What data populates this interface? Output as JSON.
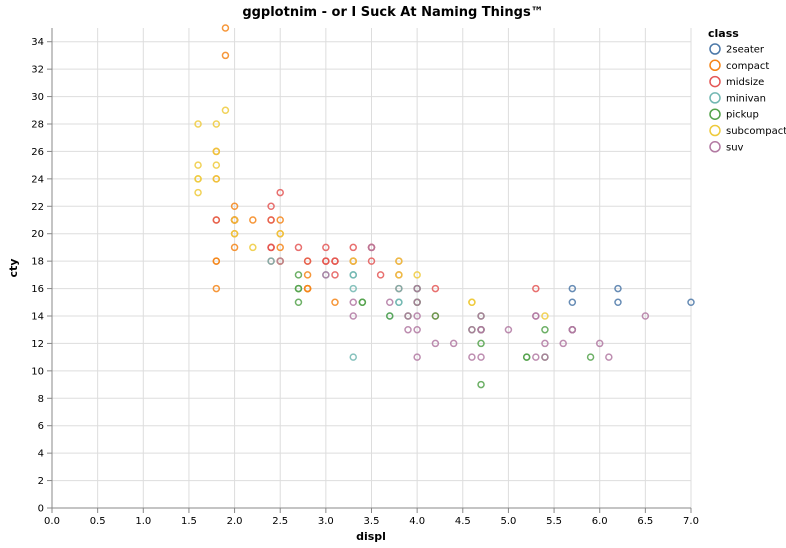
{
  "chart_data": {
    "type": "scatter",
    "title": "ggplotnim - or I Suck At Naming Things™",
    "xlabel": "displ",
    "ylabel": "cty",
    "xlim": [
      0,
      7.0
    ],
    "ylim": [
      0,
      35
    ],
    "x_ticks": [
      "0.0",
      "0.5",
      "1.0",
      "1.5",
      "2.0",
      "2.5",
      "3.0",
      "3.5",
      "4.0",
      "4.5",
      "5.0",
      "5.5",
      "6.0",
      "6.5",
      "7.0"
    ],
    "y_ticks": [
      "0",
      "2",
      "4",
      "6",
      "8",
      "10",
      "12",
      "14",
      "16",
      "18",
      "20",
      "22",
      "24",
      "26",
      "28",
      "30",
      "32",
      "34"
    ],
    "grid": true,
    "legend": {
      "title": "class",
      "placement": "right"
    },
    "series": [
      {
        "name": "2seater",
        "color": "#4c78a8",
        "points": [
          [
            5.7,
            16
          ],
          [
            5.7,
            15
          ],
          [
            6.2,
            16
          ],
          [
            6.2,
            15
          ],
          [
            7.0,
            15
          ]
        ]
      },
      {
        "name": "compact",
        "color": "#f58518",
        "points": [
          [
            1.8,
            18
          ],
          [
            1.8,
            21
          ],
          [
            2.0,
            20
          ],
          [
            2.0,
            21
          ],
          [
            2.8,
            16
          ],
          [
            2.8,
            18
          ],
          [
            3.1,
            18
          ],
          [
            1.8,
            18
          ],
          [
            2.0,
            21
          ],
          [
            2.0,
            21
          ],
          [
            2.8,
            16
          ],
          [
            2.8,
            16
          ],
          [
            3.1,
            15
          ],
          [
            1.8,
            26
          ],
          [
            2.0,
            21
          ],
          [
            2.2,
            21
          ],
          [
            2.4,
            21
          ],
          [
            2.4,
            19
          ],
          [
            2.5,
            19
          ],
          [
            2.5,
            20
          ],
          [
            3.0,
            18
          ],
          [
            3.3,
            18
          ],
          [
            1.8,
            16
          ],
          [
            1.9,
            33
          ],
          [
            2.0,
            22
          ],
          [
            2.0,
            19
          ],
          [
            2.8,
            17
          ],
          [
            1.8,
            24
          ],
          [
            1.9,
            35
          ],
          [
            2.0,
            21
          ],
          [
            2.5,
            21
          ],
          [
            2.5,
            18
          ]
        ]
      },
      {
        "name": "midsize",
        "color": "#e45756",
        "points": [
          [
            2.4,
            21
          ],
          [
            2.4,
            18
          ],
          [
            3.1,
            18
          ],
          [
            3.5,
            19
          ],
          [
            3.6,
            17
          ],
          [
            2.4,
            19
          ],
          [
            3.0,
            18
          ],
          [
            3.3,
            19
          ],
          [
            3.3,
            18
          ],
          [
            3.8,
            18
          ],
          [
            3.8,
            16
          ],
          [
            3.8,
            17
          ],
          [
            4.2,
            16
          ],
          [
            5.3,
            16
          ],
          [
            2.5,
            23
          ],
          [
            2.7,
            19
          ],
          [
            3.0,
            18
          ],
          [
            3.5,
            19
          ],
          [
            1.8,
            21
          ],
          [
            2.0,
            21
          ],
          [
            2.8,
            18
          ],
          [
            3.1,
            17
          ],
          [
            4.2,
            14
          ],
          [
            2.4,
            22
          ],
          [
            3.5,
            18
          ],
          [
            3.0,
            19
          ],
          [
            2.5,
            18
          ],
          [
            2.4,
            19
          ],
          [
            3.1,
            18
          ]
        ]
      },
      {
        "name": "minivan",
        "color": "#72b7b2",
        "points": [
          [
            2.4,
            18
          ],
          [
            3.0,
            17
          ],
          [
            3.3,
            16
          ],
          [
            3.3,
            17
          ],
          [
            3.3,
            11
          ],
          [
            3.8,
            15
          ],
          [
            3.8,
            15
          ],
          [
            3.8,
            16
          ],
          [
            4.0,
            16
          ],
          [
            3.3,
            17
          ],
          [
            3.7,
            14
          ]
        ]
      },
      {
        "name": "pickup",
        "color": "#54a24b",
        "points": [
          [
            2.7,
            15
          ],
          [
            2.7,
            16
          ],
          [
            2.7,
            17
          ],
          [
            3.4,
            15
          ],
          [
            3.9,
            14
          ],
          [
            4.7,
            14
          ],
          [
            4.7,
            13
          ],
          [
            4.7,
            12
          ],
          [
            5.2,
            11
          ],
          [
            5.7,
            13
          ],
          [
            5.9,
            11
          ],
          [
            4.7,
            9
          ],
          [
            5.2,
            11
          ],
          [
            3.7,
            14
          ],
          [
            4.0,
            15
          ],
          [
            4.2,
            14
          ],
          [
            4.6,
            13
          ],
          [
            5.4,
            11
          ],
          [
            5.4,
            13
          ],
          [
            4.0,
            16
          ],
          [
            4.7,
            13
          ],
          [
            2.7,
            16
          ],
          [
            3.4,
            15
          ],
          [
            4.0,
            15
          ]
        ]
      },
      {
        "name": "subcompact",
        "color": "#eeca3b",
        "points": [
          [
            1.6,
            28
          ],
          [
            1.6,
            24
          ],
          [
            1.6,
            25
          ],
          [
            1.6,
            23
          ],
          [
            1.6,
            24
          ],
          [
            1.8,
            26
          ],
          [
            1.8,
            25
          ],
          [
            1.8,
            24
          ],
          [
            1.8,
            28
          ],
          [
            1.9,
            29
          ],
          [
            2.0,
            20
          ],
          [
            2.2,
            19
          ],
          [
            2.5,
            20
          ],
          [
            3.3,
            18
          ],
          [
            3.8,
            17
          ],
          [
            4.0,
            17
          ],
          [
            4.6,
            15
          ],
          [
            5.4,
            14
          ],
          [
            4.6,
            15
          ],
          [
            3.8,
            18
          ],
          [
            2.0,
            21
          ],
          [
            2.5,
            18
          ]
        ]
      },
      {
        "name": "suv",
        "color": "#b279a2",
        "points": [
          [
            5.3,
            14
          ],
          [
            5.3,
            11
          ],
          [
            5.3,
            14
          ],
          [
            5.7,
            13
          ],
          [
            6.0,
            12
          ],
          [
            5.7,
            13
          ],
          [
            6.5,
            14
          ],
          [
            3.7,
            15
          ],
          [
            3.9,
            14
          ],
          [
            3.9,
            13
          ],
          [
            4.7,
            13
          ],
          [
            4.7,
            14
          ],
          [
            5.7,
            13
          ],
          [
            4.7,
            11
          ],
          [
            4.0,
            14
          ],
          [
            4.0,
            11
          ],
          [
            4.0,
            13
          ],
          [
            4.6,
            13
          ],
          [
            5.0,
            13
          ],
          [
            4.2,
            12
          ],
          [
            4.4,
            12
          ],
          [
            4.6,
            11
          ],
          [
            5.4,
            11
          ],
          [
            5.4,
            12
          ],
          [
            6.1,
            11
          ],
          [
            2.5,
            18
          ],
          [
            3.0,
            17
          ],
          [
            3.3,
            15
          ],
          [
            3.3,
            14
          ],
          [
            4.0,
            15
          ],
          [
            4.7,
            13
          ],
          [
            5.6,
            12
          ],
          [
            3.5,
            19
          ],
          [
            4.0,
            16
          ]
        ]
      }
    ]
  }
}
